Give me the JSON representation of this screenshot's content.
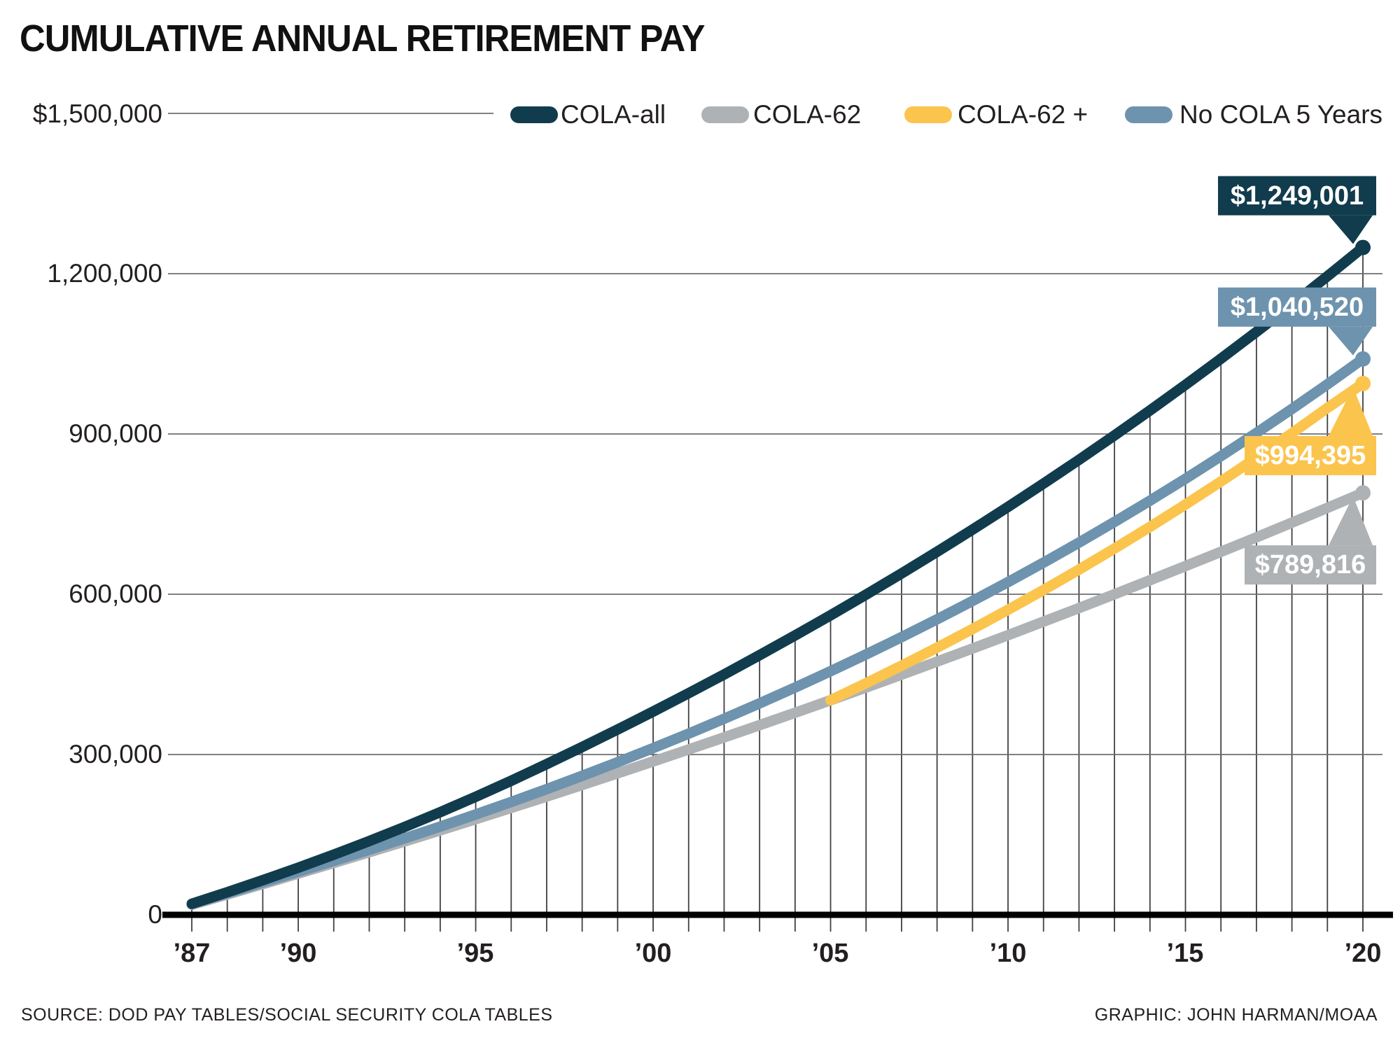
{
  "title": "CUMULATIVE ANNUAL RETIREMENT PAY",
  "footer": {
    "source": "SOURCE: DOD PAY TABLES/SOCIAL SECURITY COLA TABLES",
    "credit": "GRAPHIC: JOHN HARMAN/MOAA"
  },
  "colors": {
    "cola_all": "#113C4D",
    "cola_62": "#AFB2B4",
    "cola_62_plus": "#FBC44D",
    "no_cola_5": "#6D93AE",
    "grid_vertical": "#414042",
    "grid_horizontal": "#6D6E71",
    "axis": "#000000",
    "text": "#231F20"
  },
  "legend": {
    "items": [
      {
        "label": "COLA-all",
        "color": "#113C4D"
      },
      {
        "label": "COLA-62",
        "color": "#AFB2B4"
      },
      {
        "label": "COLA-62 +",
        "color": "#FBC44D"
      },
      {
        "label": "No COLA 5 Years",
        "color": "#6D93AE"
      }
    ]
  },
  "chart_data": {
    "type": "line",
    "title": "CUMULATIVE ANNUAL RETIREMENT PAY",
    "xlabel": "",
    "ylabel": "",
    "ylim": [
      0,
      1500000
    ],
    "grid": "horizontal full width; vertical one per year clipped at top series",
    "legend_position": "top",
    "x": [
      1987,
      1988,
      1989,
      1990,
      1991,
      1992,
      1993,
      1994,
      1995,
      1996,
      1997,
      1998,
      1999,
      2000,
      2001,
      2002,
      2003,
      2004,
      2005,
      2006,
      2007,
      2008,
      2009,
      2010,
      2011,
      2012,
      2013,
      2014,
      2015,
      2016,
      2017,
      2018,
      2019,
      2020
    ],
    "x_tick_labels": [
      {
        "year": 1987,
        "label": "’87"
      },
      {
        "year": 1990,
        "label": "’90"
      },
      {
        "year": 1995,
        "label": "’95"
      },
      {
        "year": 2000,
        "label": "’00"
      },
      {
        "year": 2005,
        "label": "’05"
      },
      {
        "year": 2010,
        "label": "’10"
      },
      {
        "year": 2015,
        "label": "’15"
      },
      {
        "year": 2020,
        "label": "’20"
      }
    ],
    "y_ticks": [
      {
        "value": 1500000,
        "label": "$1,500,000"
      },
      {
        "value": 1200000,
        "label": "1,200,000"
      },
      {
        "value": 900000,
        "label": "900,000"
      },
      {
        "value": 600000,
        "label": "600,000"
      },
      {
        "value": 300000,
        "label": "300,000"
      },
      {
        "value": 0,
        "label": "0"
      }
    ],
    "series": [
      {
        "name": "COLA-62",
        "color": "#AFB2B4",
        "final_value": 789816,
        "callout": {
          "label": "$789,816",
          "side": "below"
        },
        "values": [
          19000,
          38100,
          57500,
          77200,
          97000,
          117200,
          137500,
          158100,
          179000,
          200100,
          221400,
          243000,
          264900,
          287000,
          309400,
          332100,
          355000,
          378200,
          401700,
          425500,
          449500,
          473900,
          498500,
          523400,
          548700,
          574200,
          600000,
          626200,
          652700,
          679400,
          706500,
          734000,
          761700,
          789816
        ]
      },
      {
        "name": "No COLA 5 Years",
        "color": "#6D93AE",
        "final_value": 1040520,
        "callout": {
          "label": "$1,040,520",
          "side": "above"
        },
        "values": [
          20200,
          40300,
          60500,
          80700,
          100900,
          121700,
          143100,
          165100,
          187800,
          211200,
          235300,
          260100,
          285600,
          312000,
          339100,
          367000,
          395800,
          425400,
          455900,
          487400,
          519700,
          553100,
          587400,
          622800,
          659200,
          696700,
          735400,
          775200,
          816200,
          858500,
          902000,
          946800,
          992900,
          1040520
        ]
      },
      {
        "name": "COLA-62 +",
        "color": "#FBC44D",
        "final_value": 994395,
        "branch_year": 2005,
        "callout": {
          "label": "$994,395",
          "side": "below"
        },
        "values": [
          19000,
          38100,
          57500,
          77200,
          97000,
          117200,
          137500,
          158100,
          179000,
          200100,
          221400,
          243000,
          264900,
          287000,
          309400,
          332100,
          355000,
          378200,
          401700,
          433500,
          466300,
          500100,
          535000,
          570900,
          607900,
          646100,
          685500,
          726100,
          767900,
          811100,
          855600,
          901400,
          948700,
          994395
        ]
      },
      {
        "name": "COLA-all",
        "color": "#113C4D",
        "final_value": 1249001,
        "callout": {
          "label": "$1,249,001",
          "side": "above"
        },
        "values": [
          20700,
          42300,
          64800,
          88200,
          112600,
          138000,
          164500,
          192100,
          220900,
          250900,
          282100,
          314100,
          346900,
          380400,
          414800,
          449900,
          486000,
          522900,
          560600,
          599300,
          638900,
          679500,
          721000,
          763500,
          807100,
          851600,
          897300,
          944100,
          991900,
          1040900,
          1091100,
          1142500,
          1195200,
          1249001
        ]
      }
    ]
  }
}
